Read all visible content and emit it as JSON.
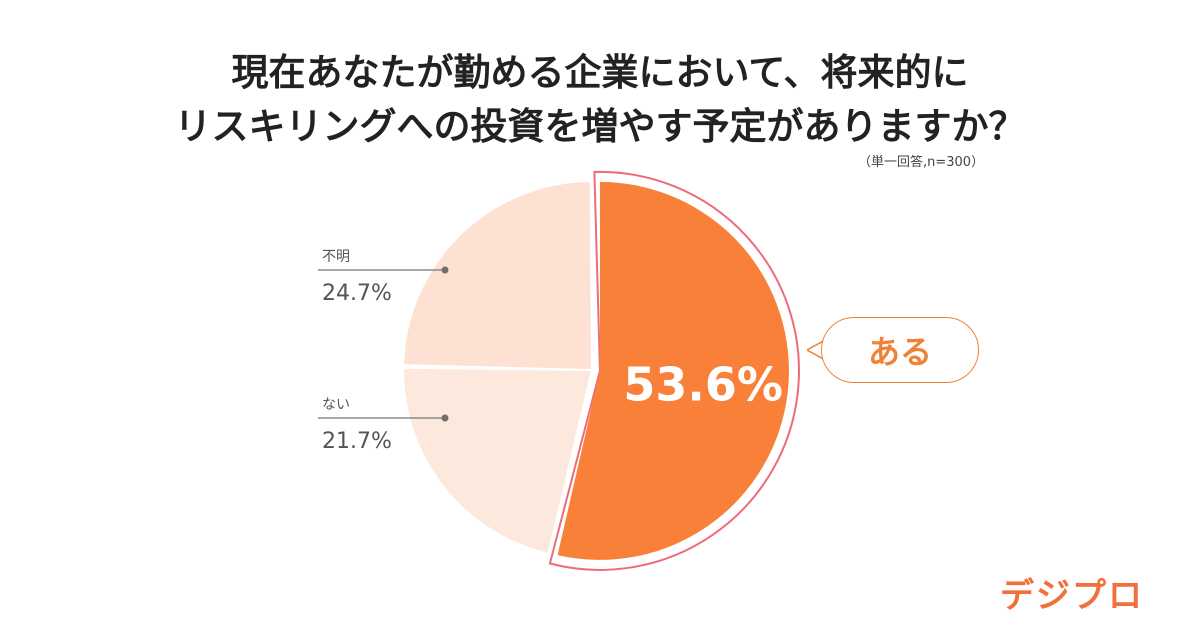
{
  "title": {
    "line1": "現在あなたが勤める企業において、将来的に",
    "line2": "リスキリングへの投資を増やす予定がありますか？"
  },
  "note": "（単一回答,n=300）",
  "callout": "ある",
  "logo": "デジプロ",
  "colors": {
    "primary": "#f98039",
    "highlight_border": "#ee6b7c",
    "unknown": "#fde2d3",
    "no": "#fde8dd",
    "label_line": "#8a8a8a",
    "label_text": "#555555"
  },
  "chart_data": {
    "type": "pie",
    "title": "現在あなたが勤める企業において、将来的にリスキリングへの投資を増やす予定がありますか？",
    "slices": [
      {
        "name": "ある",
        "value": 53.6,
        "label": "53.6%"
      },
      {
        "name": "ない",
        "value": 21.7,
        "label": "21.7%"
      },
      {
        "name": "不明",
        "value": 24.7,
        "label": "24.7%"
      }
    ],
    "legend": "callout"
  }
}
